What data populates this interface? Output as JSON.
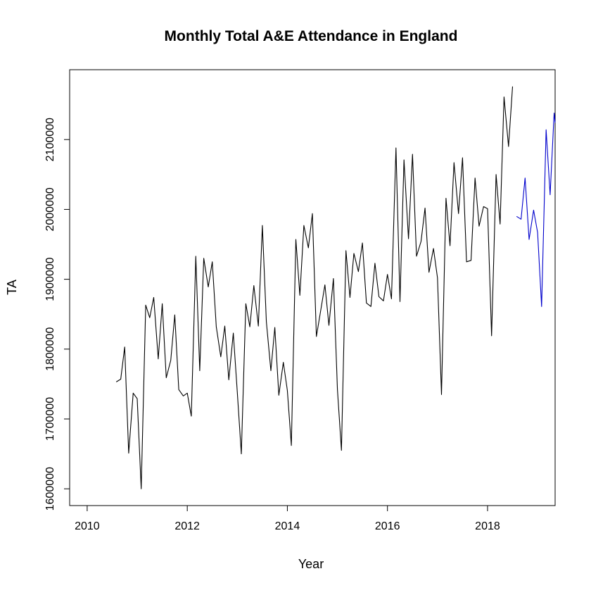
{
  "chart_data": {
    "type": "line",
    "title": "Monthly Total A&E Attendance in England",
    "xlabel": "Year",
    "ylabel": "TA",
    "xlim": [
      2009.65,
      2019.35
    ],
    "ylim": [
      1576000,
      2200000
    ],
    "xticks": [
      2010,
      2012,
      2014,
      2016,
      2018
    ],
    "xtick_labels": [
      "2010",
      "2012",
      "2014",
      "2016",
      "2018"
    ],
    "yticks": [
      1600000,
      1700000,
      1800000,
      1900000,
      2000000,
      2100000
    ],
    "ytick_labels": [
      "1600000",
      "1700000",
      "1800000",
      "1900000",
      "2000000",
      "2100000"
    ],
    "grid": false,
    "colors": {
      "observed": "#000000",
      "forecast": "#0000cc"
    },
    "series": [
      {
        "color": "#000000",
        "points": [
          [
            2010.58,
            1753000
          ],
          [
            2010.67,
            1757000
          ],
          [
            2010.75,
            1803000
          ],
          [
            2010.83,
            1651000
          ],
          [
            2010.92,
            1737000
          ],
          [
            2011.0,
            1729000
          ],
          [
            2011.08,
            1600000
          ],
          [
            2011.17,
            1863000
          ],
          [
            2011.25,
            1845000
          ],
          [
            2011.33,
            1874000
          ],
          [
            2011.42,
            1786000
          ],
          [
            2011.5,
            1865000
          ],
          [
            2011.58,
            1759000
          ],
          [
            2011.67,
            1784000
          ],
          [
            2011.75,
            1849000
          ],
          [
            2011.83,
            1742000
          ],
          [
            2011.92,
            1733000
          ],
          [
            2012.0,
            1737000
          ],
          [
            2012.08,
            1704000
          ],
          [
            2012.17,
            1933000
          ],
          [
            2012.25,
            1769000
          ],
          [
            2012.33,
            1930000
          ],
          [
            2012.42,
            1889000
          ],
          [
            2012.5,
            1925000
          ],
          [
            2012.58,
            1832000
          ],
          [
            2012.67,
            1789000
          ],
          [
            2012.75,
            1833000
          ],
          [
            2012.83,
            1756000
          ],
          [
            2012.92,
            1823000
          ],
          [
            2013.0,
            1738000
          ],
          [
            2013.08,
            1650000
          ],
          [
            2013.17,
            1865000
          ],
          [
            2013.25,
            1832000
          ],
          [
            2013.33,
            1891000
          ],
          [
            2013.42,
            1833000
          ],
          [
            2013.5,
            1977000
          ],
          [
            2013.58,
            1839000
          ],
          [
            2013.67,
            1769000
          ],
          [
            2013.75,
            1831000
          ],
          [
            2013.83,
            1734000
          ],
          [
            2013.92,
            1781000
          ],
          [
            2014.0,
            1741000
          ],
          [
            2014.08,
            1662000
          ],
          [
            2014.17,
            1957000
          ],
          [
            2014.25,
            1877000
          ],
          [
            2014.33,
            1977000
          ],
          [
            2014.42,
            1945000
          ],
          [
            2014.5,
            1994000
          ],
          [
            2014.58,
            1818000
          ],
          [
            2014.67,
            1857000
          ],
          [
            2014.75,
            1892000
          ],
          [
            2014.83,
            1834000
          ],
          [
            2014.92,
            1901000
          ],
          [
            2015.0,
            1742000
          ],
          [
            2015.08,
            1655000
          ],
          [
            2015.17,
            1941000
          ],
          [
            2015.25,
            1874000
          ],
          [
            2015.33,
            1937000
          ],
          [
            2015.42,
            1911000
          ],
          [
            2015.5,
            1952000
          ],
          [
            2015.58,
            1866000
          ],
          [
            2015.67,
            1861000
          ],
          [
            2015.75,
            1923000
          ],
          [
            2015.83,
            1875000
          ],
          [
            2015.92,
            1869000
          ],
          [
            2016.0,
            1907000
          ],
          [
            2016.08,
            1872000
          ],
          [
            2016.17,
            2088000
          ],
          [
            2016.25,
            1868000
          ],
          [
            2016.33,
            2071000
          ],
          [
            2016.42,
            1958000
          ],
          [
            2016.5,
            2079000
          ],
          [
            2016.58,
            1933000
          ],
          [
            2016.67,
            1954000
          ],
          [
            2016.75,
            2002000
          ],
          [
            2016.83,
            1910000
          ],
          [
            2016.92,
            1944000
          ],
          [
            2017.0,
            1902000
          ],
          [
            2017.08,
            1735000
          ],
          [
            2017.17,
            2016000
          ],
          [
            2017.25,
            1948000
          ],
          [
            2017.33,
            2067000
          ],
          [
            2017.42,
            1994000
          ],
          [
            2017.5,
            2074000
          ],
          [
            2017.58,
            1925000
          ],
          [
            2017.67,
            1927000
          ],
          [
            2017.75,
            2045000
          ],
          [
            2017.83,
            1976000
          ],
          [
            2017.92,
            2004000
          ],
          [
            2018.0,
            2001000
          ],
          [
            2018.08,
            1819000
          ],
          [
            2018.17,
            2050000
          ],
          [
            2018.25,
            1979000
          ],
          [
            2018.33,
            2161000
          ],
          [
            2018.42,
            2090000
          ],
          [
            2018.5,
            2176000
          ]
        ]
      },
      {
        "color": "#0000cc",
        "points": [
          [
            2018.58,
            1990000
          ],
          [
            2018.67,
            1986000
          ],
          [
            2018.75,
            2045000
          ],
          [
            2018.83,
            1957000
          ],
          [
            2018.92,
            1999000
          ],
          [
            2019.0,
            1967000
          ],
          [
            2019.08,
            1861000
          ],
          [
            2019.17,
            2114000
          ],
          [
            2019.25,
            2021000
          ],
          [
            2019.33,
            2138000
          ],
          [
            2019.35,
            2124000
          ]
        ]
      }
    ]
  }
}
